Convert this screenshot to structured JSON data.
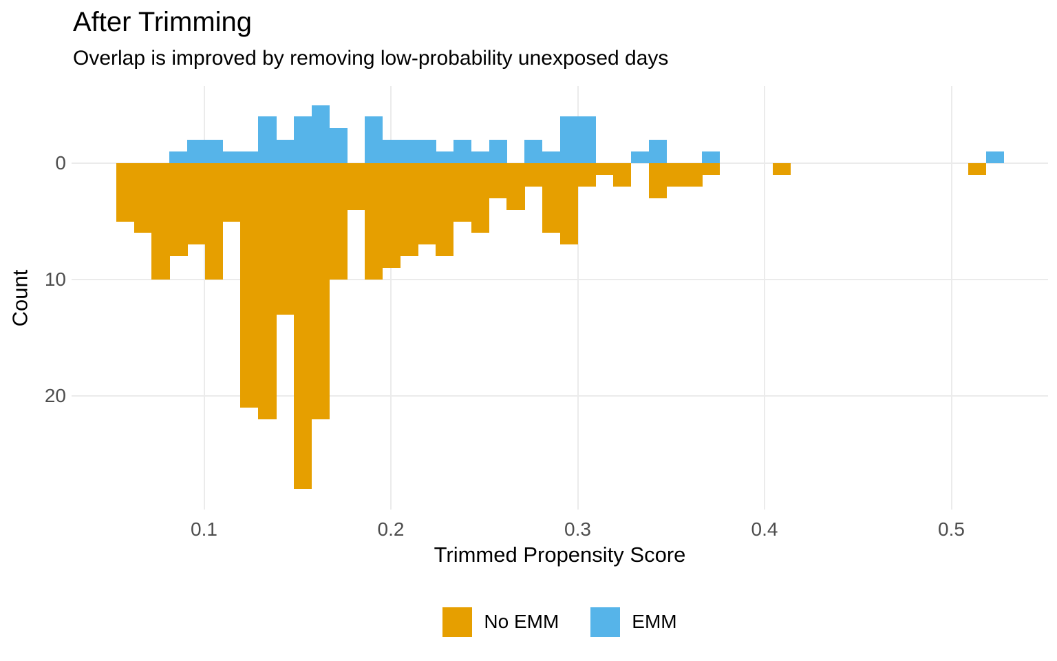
{
  "header": {
    "title": "After Trimming",
    "subtitle": "Overlap is improved by removing low-probability unexposed days"
  },
  "chart_data": {
    "type": "bar",
    "subtype": "mirrored_histogram",
    "title": "After Trimming",
    "subtitle": "Overlap is improved by removing low-probability unexposed days",
    "xlabel": "Trimmed Propensity Score",
    "ylabel": "Count",
    "x_ticks": [
      {
        "label": "0.1",
        "value": 0.1
      },
      {
        "label": "0.2",
        "value": 0.2
      },
      {
        "label": "0.3",
        "value": 0.3
      },
      {
        "label": "0.4",
        "value": 0.4
      },
      {
        "label": "0.5",
        "value": 0.5
      }
    ],
    "y_ticks": [
      {
        "label": "0",
        "value": 0
      },
      {
        "label": "10",
        "value": 10
      },
      {
        "label": "20",
        "value": 20
      }
    ],
    "bins": {
      "start": 0.053,
      "width": 0.0095
    },
    "series": [
      {
        "name": "No EMM",
        "color": "#E69F00",
        "direction": "down",
        "counts": [
          5,
          6,
          10,
          8,
          7,
          10,
          5,
          21,
          22,
          13,
          28,
          22,
          10,
          4,
          10,
          9,
          8,
          7,
          8,
          5,
          6,
          3,
          4,
          2,
          6,
          7,
          2,
          1,
          2,
          0,
          3,
          2,
          2,
          1,
          0,
          0,
          0,
          1,
          0,
          0,
          0,
          0,
          0,
          0,
          0,
          0,
          0,
          0,
          1,
          0
        ]
      },
      {
        "name": "EMM",
        "color": "#56B4E9",
        "direction": "up",
        "counts": [
          0,
          0,
          0,
          1,
          2,
          2,
          1,
          1,
          4,
          2,
          4,
          5,
          3,
          0,
          4,
          2,
          2,
          2,
          1,
          2,
          1,
          2,
          0,
          2,
          1,
          4,
          4,
          0,
          0,
          1,
          2,
          0,
          0,
          1,
          0,
          0,
          0,
          0,
          0,
          0,
          0,
          0,
          0,
          0,
          0,
          0,
          0,
          0,
          0,
          1
        ]
      }
    ],
    "x_range": [
      0.029,
      0.552
    ],
    "count_axis_range": [
      -29.6,
      6.6
    ],
    "grid": true,
    "legend_position": "bottom"
  },
  "legend": {
    "items": [
      {
        "label": "No EMM",
        "color": "#E69F00"
      },
      {
        "label": "EMM",
        "color": "#56B4E9"
      }
    ]
  },
  "colors": {
    "no_emm": "#E69F00",
    "emm": "#56B4E9",
    "grid": "#EBEBEB",
    "tick_text": "#4D4D4D",
    "text": "#000000",
    "background": "#FFFFFF"
  }
}
